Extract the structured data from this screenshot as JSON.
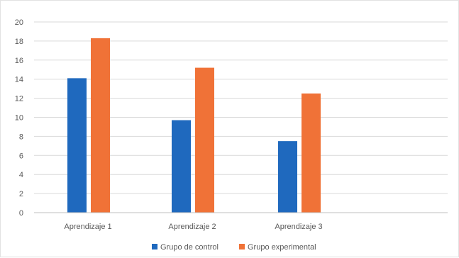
{
  "chart_data": {
    "type": "bar",
    "categories": [
      "Aprendizaje 1",
      "Aprendizaje 2",
      "Aprendizaje 3"
    ],
    "series": [
      {
        "name": "Grupo de control",
        "values": [
          14.1,
          9.7,
          7.5
        ],
        "color": "#1f69be"
      },
      {
        "name": "Grupo experimental",
        "values": [
          18.3,
          15.2,
          12.5
        ],
        "color": "#f07237"
      }
    ],
    "ylim": [
      0,
      20
    ],
    "yticks": [
      0,
      2,
      4,
      6,
      8,
      10,
      12,
      14,
      16,
      18,
      20
    ],
    "grid": true,
    "legend": "bottom",
    "title": "",
    "xlabel": "",
    "ylabel": ""
  }
}
